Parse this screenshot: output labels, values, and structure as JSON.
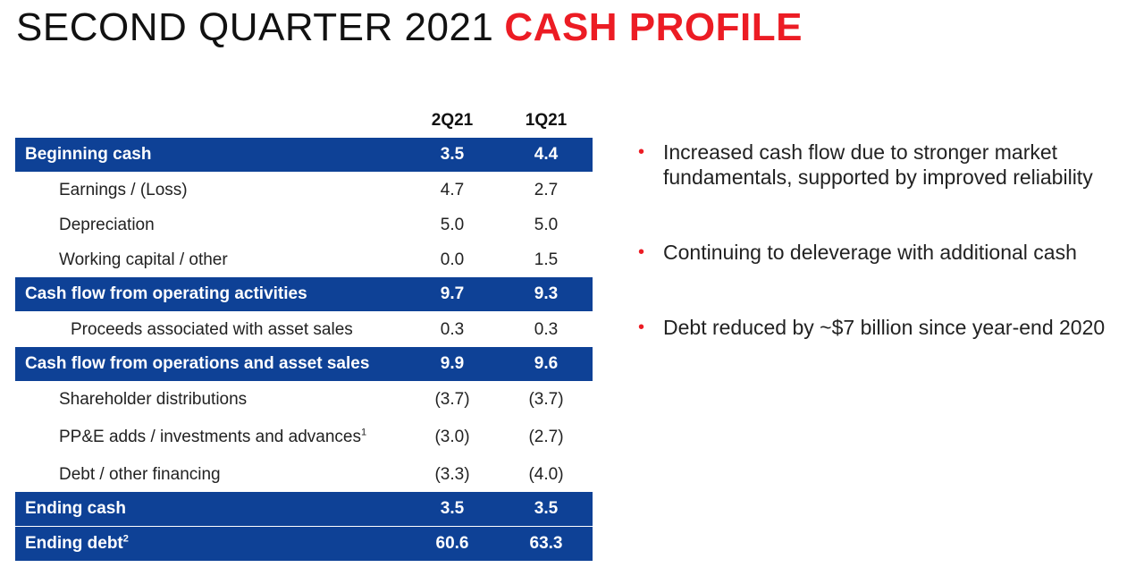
{
  "title": {
    "main": "SECOND QUARTER 2021",
    "highlight": "CASH PROFILE"
  },
  "columns": {
    "c1": "2Q21",
    "c2": "1Q21"
  },
  "rows": [
    {
      "label": "Beginning cash",
      "v1": "3.5",
      "v2": "4.4"
    },
    {
      "label": "Earnings / (Loss)",
      "v1": "4.7",
      "v2": "2.7"
    },
    {
      "label": "Depreciation",
      "v1": "5.0",
      "v2": "5.0"
    },
    {
      "label": "Working capital / other",
      "v1": "0.0",
      "v2": "1.5"
    },
    {
      "label": "Cash flow from operating activities",
      "v1": "9.7",
      "v2": "9.3"
    },
    {
      "label": "Proceeds associated with asset sales",
      "v1": "0.3",
      "v2": "0.3"
    },
    {
      "label": "Cash flow from operations and asset sales",
      "v1": "9.9",
      "v2": "9.6"
    },
    {
      "label": "Shareholder distributions",
      "v1": "(3.7)",
      "v2": "(3.7)"
    },
    {
      "label": "PP&E adds / investments and advances",
      "sup": "1",
      "v1": "(3.0)",
      "v2": "(2.7)"
    },
    {
      "label": "Debt / other financing",
      "v1": "(3.3)",
      "v2": "(4.0)"
    },
    {
      "label": "Ending cash",
      "v1": "3.5",
      "v2": "3.5"
    },
    {
      "label": "Ending debt",
      "sup": "2",
      "v1": "60.6",
      "v2": "63.3"
    }
  ],
  "bullets": [
    "Increased cash flow due to stronger market fundamentals, supported by improved reliability",
    "Continuing to deleverage with additional cash",
    "Debt reduced by ~$7 billion since year-end 2020"
  ],
  "colors": {
    "band": "#0e4196",
    "accent": "#ec1c24"
  }
}
